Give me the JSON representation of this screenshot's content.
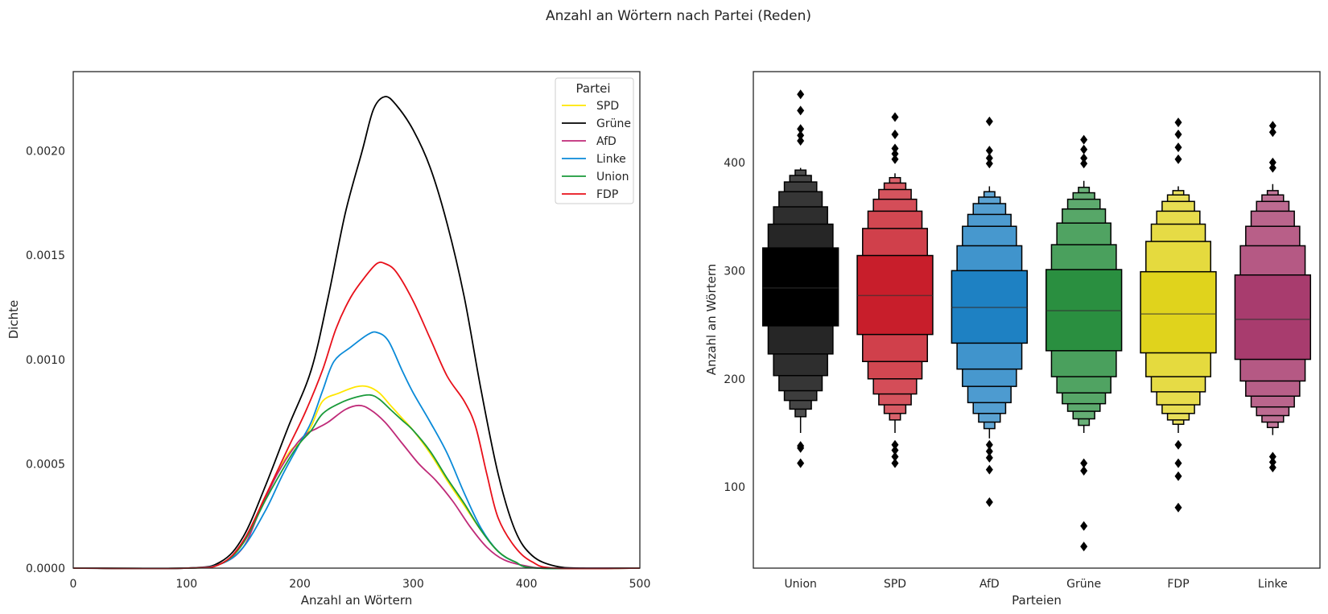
{
  "figure": {
    "title": "Anzahl an Wörtern nach Partei (Reden)"
  },
  "chart_data": [
    {
      "type": "line",
      "subtype": "kde",
      "xlabel": "Anzahl an Wörtern",
      "ylabel": "Dichte",
      "xlim": [
        0,
        500
      ],
      "ylim": [
        0,
        0.00238
      ],
      "xticks": [
        "0",
        "100",
        "200",
        "300",
        "400",
        "500"
      ],
      "xtick_values": [
        0,
        100,
        200,
        300,
        400,
        500
      ],
      "yticks": [
        "0.0000",
        "0.0005",
        "0.0010",
        "0.0015",
        "0.0020"
      ],
      "ytick_values": [
        0,
        0.0005,
        0.001,
        0.0015,
        0.002
      ],
      "grid": false,
      "legend": {
        "title": "Partei",
        "placement": "top-right"
      },
      "series": [
        {
          "name": "SPD",
          "color": "#ffe600",
          "points": [
            [
              0,
              0
            ],
            [
              100,
              0
            ],
            [
              130,
              2e-05
            ],
            [
              150,
              0.00012
            ],
            [
              170,
              0.00035
            ],
            [
              190,
              0.00055
            ],
            [
              200,
              0.0006
            ],
            [
              210,
              0.00068
            ],
            [
              220,
              0.0008
            ],
            [
              235,
              0.00084
            ],
            [
              250,
              0.00087
            ],
            [
              260,
              0.00087
            ],
            [
              270,
              0.00084
            ],
            [
              280,
              0.00078
            ],
            [
              290,
              0.00072
            ],
            [
              300,
              0.00066
            ],
            [
              315,
              0.00055
            ],
            [
              330,
              0.00042
            ],
            [
              345,
              0.0003
            ],
            [
              360,
              0.00018
            ],
            [
              375,
              8e-05
            ],
            [
              390,
              3e-05
            ],
            [
              410,
              0
            ],
            [
              500,
              0
            ]
          ]
        },
        {
          "name": "Grüne",
          "color": "#000000",
          "points": [
            [
              0,
              0
            ],
            [
              100,
              0
            ],
            [
              130,
              3e-05
            ],
            [
              150,
              0.00015
            ],
            [
              170,
              0.0004
            ],
            [
              190,
              0.00068
            ],
            [
              210,
              0.00095
            ],
            [
              225,
              0.0013
            ],
            [
              240,
              0.0017
            ],
            [
              255,
              0.002
            ],
            [
              265,
              0.0022
            ],
            [
              275,
              0.00226
            ],
            [
              285,
              0.00222
            ],
            [
              300,
              0.0021
            ],
            [
              315,
              0.00192
            ],
            [
              330,
              0.00165
            ],
            [
              345,
              0.0013
            ],
            [
              360,
              0.00085
            ],
            [
              375,
              0.00045
            ],
            [
              390,
              0.00018
            ],
            [
              405,
              6e-05
            ],
            [
              425,
              1e-05
            ],
            [
              450,
              0
            ],
            [
              500,
              0
            ]
          ]
        },
        {
          "name": "AfD",
          "color": "#bf2a78",
          "points": [
            [
              0,
              0
            ],
            [
              100,
              0
            ],
            [
              130,
              2e-05
            ],
            [
              150,
              0.0001
            ],
            [
              165,
              0.00028
            ],
            [
              180,
              0.00045
            ],
            [
              195,
              0.00058
            ],
            [
              205,
              0.00064
            ],
            [
              215,
              0.00067
            ],
            [
              225,
              0.0007
            ],
            [
              240,
              0.00076
            ],
            [
              252,
              0.00078
            ],
            [
              262,
              0.00076
            ],
            [
              275,
              0.0007
            ],
            [
              290,
              0.0006
            ],
            [
              305,
              0.0005
            ],
            [
              320,
              0.00042
            ],
            [
              335,
              0.00032
            ],
            [
              350,
              0.0002
            ],
            [
              365,
              0.0001
            ],
            [
              380,
              4e-05
            ],
            [
              400,
              1e-05
            ],
            [
              420,
              0
            ],
            [
              500,
              0
            ]
          ]
        },
        {
          "name": "Linke",
          "color": "#0a8ad8",
          "points": [
            [
              0,
              0
            ],
            [
              100,
              0
            ],
            [
              130,
              2e-05
            ],
            [
              150,
              0.0001
            ],
            [
              170,
              0.00028
            ],
            [
              185,
              0.00045
            ],
            [
              200,
              0.0006
            ],
            [
              210,
              0.0007
            ],
            [
              220,
              0.00085
            ],
            [
              230,
              0.00099
            ],
            [
              245,
              0.00106
            ],
            [
              260,
              0.00112
            ],
            [
              268,
              0.00113
            ],
            [
              278,
              0.00109
            ],
            [
              290,
              0.00095
            ],
            [
              300,
              0.00084
            ],
            [
              315,
              0.0007
            ],
            [
              330,
              0.00055
            ],
            [
              345,
              0.00036
            ],
            [
              360,
              0.00019
            ],
            [
              375,
              8e-05
            ],
            [
              390,
              3e-05
            ],
            [
              410,
              0
            ],
            [
              500,
              0
            ]
          ]
        },
        {
          "name": "Union",
          "color": "#1a9a3a",
          "points": [
            [
              0,
              0
            ],
            [
              100,
              0
            ],
            [
              130,
              2e-05
            ],
            [
              150,
              0.00012
            ],
            [
              170,
              0.00033
            ],
            [
              190,
              0.00052
            ],
            [
              200,
              0.0006
            ],
            [
              210,
              0.00066
            ],
            [
              220,
              0.00074
            ],
            [
              235,
              0.00079
            ],
            [
              250,
              0.00082
            ],
            [
              262,
              0.00083
            ],
            [
              270,
              0.00081
            ],
            [
              280,
              0.00076
            ],
            [
              290,
              0.00071
            ],
            [
              300,
              0.00066
            ],
            [
              315,
              0.00056
            ],
            [
              330,
              0.00043
            ],
            [
              345,
              0.00031
            ],
            [
              360,
              0.00018
            ],
            [
              375,
              8e-05
            ],
            [
              390,
              3e-05
            ],
            [
              410,
              0
            ],
            [
              500,
              0
            ]
          ]
        },
        {
          "name": "FDP",
          "color": "#e8101a",
          "points": [
            [
              0,
              0
            ],
            [
              100,
              0
            ],
            [
              130,
              2e-05
            ],
            [
              150,
              0.00013
            ],
            [
              170,
              0.00035
            ],
            [
              190,
              0.00058
            ],
            [
              205,
              0.00075
            ],
            [
              220,
              0.00095
            ],
            [
              232,
              0.00115
            ],
            [
              245,
              0.0013
            ],
            [
              258,
              0.0014
            ],
            [
              268,
              0.00146
            ],
            [
              275,
              0.00146
            ],
            [
              285,
              0.00142
            ],
            [
              300,
              0.00128
            ],
            [
              315,
              0.0011
            ],
            [
              330,
              0.00092
            ],
            [
              345,
              0.0008
            ],
            [
              355,
              0.00068
            ],
            [
              365,
              0.00045
            ],
            [
              375,
              0.00024
            ],
            [
              390,
              0.0001
            ],
            [
              405,
              3e-05
            ],
            [
              425,
              0
            ],
            [
              500,
              0
            ]
          ]
        }
      ]
    },
    {
      "type": "boxen",
      "xlabel": "Parteien",
      "ylabel": "Anzahl an Wörtern",
      "ylim": [
        25,
        484
      ],
      "yticks": [
        "100",
        "200",
        "300",
        "400"
      ],
      "ytick_values": [
        100,
        200,
        300,
        400
      ],
      "grid": false,
      "categories": [
        "Union",
        "SPD",
        "AfD",
        "Grüne",
        "FDP",
        "Linke"
      ],
      "series": [
        {
          "name": "Union",
          "color": "#000000",
          "median": 284,
          "levels": [
            [
              249,
              321
            ],
            [
              223,
              343
            ],
            [
              203,
              359
            ],
            [
              189,
              373
            ],
            [
              180,
              382
            ],
            [
              172,
              388
            ],
            [
              165,
              393
            ]
          ],
          "whisker": [
            150,
            395
          ],
          "outliers": [
            122,
            136,
            138,
            420,
            425,
            431,
            448,
            463
          ]
        },
        {
          "name": "SPD",
          "color": "#c81e2b",
          "median": 277,
          "levels": [
            [
              241,
              314
            ],
            [
              216,
              339
            ],
            [
              200,
              355
            ],
            [
              186,
              366
            ],
            [
              176,
              375
            ],
            [
              168,
              381
            ],
            [
              162,
              386
            ]
          ],
          "whisker": [
            150,
            390
          ],
          "outliers": [
            122,
            128,
            134,
            139,
            403,
            408,
            413,
            426,
            442
          ]
        },
        {
          "name": "AfD",
          "color": "#1e81c3",
          "median": 266,
          "levels": [
            [
              233,
              300
            ],
            [
              209,
              323
            ],
            [
              193,
              341
            ],
            [
              178,
              352
            ],
            [
              168,
              362
            ],
            [
              160,
              368
            ],
            [
              154,
              373
            ]
          ],
          "whisker": [
            145,
            378
          ],
          "outliers": [
            86,
            116,
            127,
            133,
            139,
            399,
            404,
            411,
            438
          ]
        },
        {
          "name": "Grüne",
          "color": "#2a8f40",
          "median": 263,
          "levels": [
            [
              226,
              301
            ],
            [
              202,
              324
            ],
            [
              187,
              344
            ],
            [
              177,
              357
            ],
            [
              170,
              366
            ],
            [
              163,
              372
            ],
            [
              157,
              377
            ]
          ],
          "whisker": [
            150,
            383
          ],
          "outliers": [
            45,
            64,
            115,
            122,
            399,
            404,
            412,
            421
          ]
        },
        {
          "name": "FDP",
          "color": "#e0d31c",
          "median": 260,
          "levels": [
            [
              224,
              299
            ],
            [
              202,
              327
            ],
            [
              188,
              343
            ],
            [
              176,
              355
            ],
            [
              168,
              364
            ],
            [
              162,
              370
            ],
            [
              158,
              374
            ]
          ],
          "whisker": [
            150,
            378
          ],
          "outliers": [
            81,
            110,
            122,
            139,
            403,
            414,
            426,
            437
          ]
        },
        {
          "name": "Linke",
          "color": "#a83c6e",
          "median": 255,
          "levels": [
            [
              218,
              296
            ],
            [
              198,
              323
            ],
            [
              184,
              341
            ],
            [
              174,
              355
            ],
            [
              166,
              364
            ],
            [
              160,
              370
            ],
            [
              155,
              374
            ]
          ],
          "whisker": [
            148,
            380
          ],
          "outliers": [
            118,
            123,
            128,
            395,
            400,
            428,
            434
          ]
        }
      ]
    }
  ]
}
